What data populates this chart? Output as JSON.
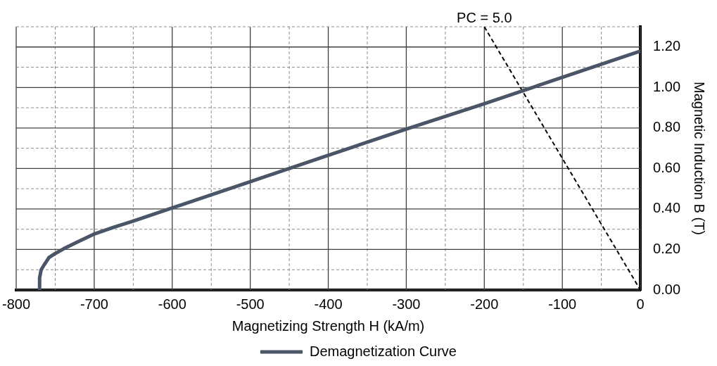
{
  "chart_data": {
    "type": "line",
    "xlabel": "Magnetizing Strength H (kA/m)",
    "ylabel": "Magnetic Induction B (T)",
    "series": [
      {
        "name": "Demagnetization Curve",
        "color": "#4a5568",
        "x": [
          -770,
          -770,
          -768,
          -764,
          -758,
          -750,
          -739,
          -720,
          -701,
          -675,
          -650,
          -600,
          -500,
          -400,
          -300,
          -200,
          -100,
          0
        ],
        "values": [
          0,
          0.06,
          0.1,
          0.125,
          0.16,
          0.18,
          0.204,
          0.24,
          0.275,
          0.31,
          0.34,
          0.405,
          0.535,
          0.665,
          0.795,
          0.92,
          1.05,
          1.18
        ]
      },
      {
        "type": "line",
        "color": "#000000",
        "line_style": "dashed",
        "x": [
          -200,
          0
        ],
        "values": [
          1.3,
          0
        ]
      }
    ],
    "annotations": [
      {
        "text": "PC = 5.0",
        "x": -200,
        "y": 1.3
      }
    ],
    "xlim": [
      -800,
      0
    ],
    "xticks": [
      -800,
      {
        "value": -750,
        "label": null
      },
      -700,
      {
        "value": -650,
        "label": null
      },
      -600,
      {
        "value": -550,
        "label": null
      },
      -500,
      {
        "value": -450,
        "label": null
      },
      -400,
      {
        "value": -350,
        "label": null
      },
      -300,
      {
        "value": -250,
        "label": null
      },
      -200,
      {
        "value": -150,
        "label": null
      },
      -100,
      {
        "value": -50,
        "label": null
      },
      0
    ],
    "ylim": [
      0,
      1.3
    ],
    "yticks": [
      {
        "value": 0,
        "label": "0.00"
      },
      {
        "value": 0.1,
        "label": null
      },
      {
        "value": 0.2,
        "label": "0.20"
      },
      {
        "value": 0.3,
        "label": null
      },
      {
        "value": 0.4,
        "label": "0.40"
      },
      {
        "value": 0.5,
        "label": null
      },
      {
        "value": 0.6,
        "label": "0.60"
      },
      {
        "value": 0.7,
        "label": null
      },
      {
        "value": 0.8,
        "label": "0.80"
      },
      {
        "value": 0.9,
        "label": null
      },
      {
        "value": 1.0,
        "label": "1.00"
      },
      {
        "value": 1.1,
        "label": null
      },
      {
        "value": 1.2,
        "label": "1.20"
      },
      {
        "value": 1.3,
        "label": null
      }
    ],
    "grid": true,
    "legend": "bottom",
    "marker": "none",
    "line_style": "solid"
  }
}
